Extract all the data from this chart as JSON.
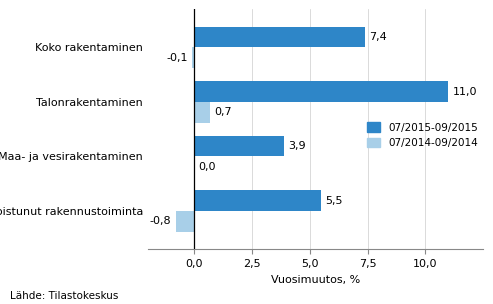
{
  "categories": [
    "Erikoistunut rakennustoiminta",
    "Maa- ja vesirakentaminen",
    "Talonrakentaminen",
    "Koko rakentaminen"
  ],
  "series_2015": [
    5.5,
    3.9,
    11.0,
    7.4
  ],
  "series_2014": [
    -0.8,
    0.0,
    0.7,
    -0.1
  ],
  "color_2015": "#2e86c8",
  "color_2014": "#a8cfe8",
  "xlabel": "Vuosimuutos, %",
  "legend_2015": "07/2015-09/2015",
  "legend_2014": "07/2014-09/2014",
  "source": "Lähde: Tilastokeskus",
  "xlim": [
    -2.0,
    12.5
  ],
  "xticks": [
    0.0,
    2.5,
    5.0,
    7.5,
    10.0
  ],
  "xtick_labels": [
    "0,0",
    "2,5",
    "5,0",
    "7,5",
    "10,0"
  ],
  "bar_height": 0.38,
  "label_fontsize": 8,
  "axis_fontsize": 8,
  "source_fontsize": 7.5,
  "background_color": "#ffffff"
}
